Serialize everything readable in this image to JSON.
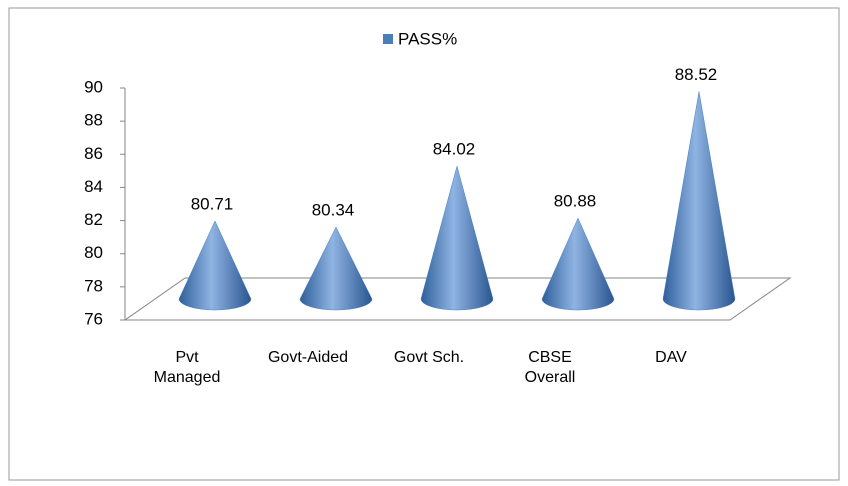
{
  "chart_data": {
    "type": "cone",
    "categories": [
      "Pvt Managed",
      "Govt-Aided",
      "Govt Sch.",
      "CBSE Overall",
      "DAV"
    ],
    "series": [
      {
        "name": "PASS%",
        "color": "#4a7ebb",
        "values": [
          80.71,
          80.34,
          84.02,
          80.88,
          88.52
        ]
      }
    ],
    "ylim": [
      76,
      90
    ],
    "yticks": [
      76,
      78,
      80,
      82,
      84,
      86,
      88,
      90
    ],
    "legend": "top"
  }
}
